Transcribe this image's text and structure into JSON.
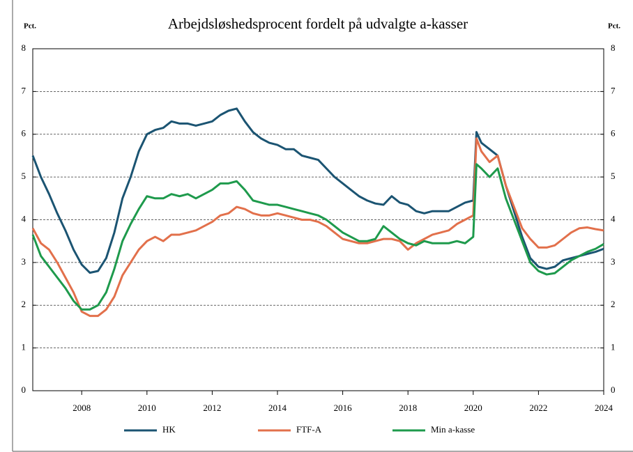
{
  "chart_data": {
    "type": "line",
    "title": "Arbejdsløshedsprocent fordelt på udvalgte a-kasser",
    "y_label": "Pct.",
    "y2_label": "Pct.",
    "x": [
      2006.5,
      2006.75,
      2007,
      2007.25,
      2007.5,
      2007.75,
      2008,
      2008.25,
      2008.5,
      2008.75,
      2009,
      2009.25,
      2009.5,
      2009.75,
      2010,
      2010.25,
      2010.5,
      2010.75,
      2011,
      2011.25,
      2011.5,
      2011.75,
      2012,
      2012.25,
      2012.5,
      2012.75,
      2013,
      2013.25,
      2013.5,
      2013.75,
      2014,
      2014.25,
      2014.5,
      2014.75,
      2015,
      2015.25,
      2015.5,
      2015.75,
      2016,
      2016.25,
      2016.5,
      2016.75,
      2017,
      2017.25,
      2017.5,
      2017.75,
      2018,
      2018.25,
      2018.5,
      2018.75,
      2019,
      2019.25,
      2019.5,
      2019.75,
      2020,
      2020.1,
      2020.25,
      2020.5,
      2020.75,
      2021,
      2021.25,
      2021.5,
      2021.75,
      2022,
      2022.25,
      2022.5,
      2022.75,
      2023,
      2023.25,
      2023.5,
      2023.75,
      2024
    ],
    "series": [
      {
        "name": "HK",
        "color": "#1b5472",
        "values": [
          5.5,
          5.0,
          4.6,
          4.15,
          3.75,
          3.3,
          2.95,
          2.76,
          2.8,
          3.1,
          3.7,
          4.5,
          5.0,
          5.6,
          6.0,
          6.1,
          6.15,
          6.3,
          6.25,
          6.25,
          6.2,
          6.25,
          6.3,
          6.45,
          6.55,
          6.6,
          6.3,
          6.05,
          5.9,
          5.8,
          5.75,
          5.65,
          5.65,
          5.5,
          5.45,
          5.4,
          5.2,
          5.0,
          4.85,
          4.7,
          4.55,
          4.45,
          4.38,
          4.35,
          4.55,
          4.4,
          4.35,
          4.2,
          4.15,
          4.2,
          4.2,
          4.2,
          4.3,
          4.4,
          4.45,
          6.05,
          5.8,
          5.65,
          5.5,
          4.8,
          4.2,
          3.6,
          3.1,
          2.9,
          2.85,
          2.9,
          3.05,
          3.1,
          3.15,
          3.2,
          3.25,
          3.32
        ]
      },
      {
        "name": "FTF-A",
        "color": "#e2704b",
        "values": [
          3.8,
          3.45,
          3.3,
          3.0,
          2.65,
          2.3,
          1.85,
          1.75,
          1.75,
          1.9,
          2.2,
          2.7,
          3.0,
          3.3,
          3.5,
          3.6,
          3.5,
          3.65,
          3.65,
          3.7,
          3.75,
          3.85,
          3.95,
          4.1,
          4.15,
          4.3,
          4.25,
          4.15,
          4.1,
          4.1,
          4.15,
          4.1,
          4.05,
          4.0,
          4.0,
          3.95,
          3.85,
          3.7,
          3.55,
          3.5,
          3.45,
          3.45,
          3.5,
          3.55,
          3.55,
          3.5,
          3.3,
          3.45,
          3.55,
          3.65,
          3.7,
          3.75,
          3.9,
          4.0,
          4.1,
          5.9,
          5.6,
          5.35,
          5.5,
          4.8,
          4.3,
          3.8,
          3.55,
          3.35,
          3.35,
          3.4,
          3.55,
          3.7,
          3.8,
          3.82,
          3.78,
          3.75
        ]
      },
      {
        "name": "Min a-kasse",
        "color": "#1e9a4c",
        "values": [
          3.65,
          3.15,
          2.9,
          2.65,
          2.4,
          2.1,
          1.9,
          1.9,
          2.0,
          2.3,
          2.85,
          3.5,
          3.9,
          4.25,
          4.55,
          4.5,
          4.5,
          4.6,
          4.55,
          4.6,
          4.5,
          4.6,
          4.7,
          4.85,
          4.85,
          4.9,
          4.7,
          4.45,
          4.4,
          4.35,
          4.35,
          4.3,
          4.25,
          4.2,
          4.15,
          4.1,
          4.0,
          3.85,
          3.7,
          3.6,
          3.5,
          3.5,
          3.55,
          3.85,
          3.7,
          3.55,
          3.45,
          3.4,
          3.5,
          3.45,
          3.45,
          3.45,
          3.5,
          3.45,
          3.6,
          5.3,
          5.2,
          5.0,
          5.2,
          4.5,
          4.0,
          3.5,
          3.0,
          2.8,
          2.72,
          2.75,
          2.9,
          3.05,
          3.15,
          3.25,
          3.32,
          3.43
        ]
      }
    ],
    "xlim": [
      2006.5,
      2024
    ],
    "xticks": [
      2008,
      2010,
      2012,
      2014,
      2016,
      2018,
      2020,
      2022,
      2024
    ],
    "ylim": [
      0,
      8
    ],
    "yticks": [
      0,
      1,
      2,
      3,
      4,
      5,
      6,
      7,
      8
    ],
    "y2lim": [
      0,
      8
    ],
    "y2ticks": [
      0,
      1,
      2,
      3,
      4,
      5,
      6,
      7,
      8
    ],
    "grid": true,
    "legend": "bottom"
  }
}
